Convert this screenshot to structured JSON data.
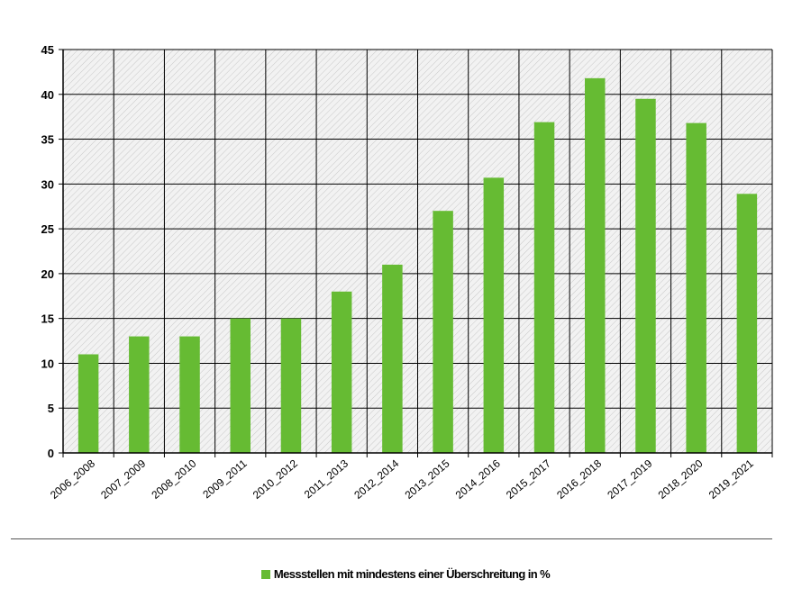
{
  "chart_data": {
    "type": "bar",
    "categories": [
      "2006_2008",
      "2007_2009",
      "2008_2010",
      "2009_2011",
      "2010_2012",
      "2011_2013",
      "2012_2014",
      "2013_2015",
      "2014_2016",
      "2015_2017",
      "2016_2018",
      "2017_2019",
      "2018_2020",
      "2019_2021"
    ],
    "series": [
      {
        "name": "Messstellen mit mindestens einer Überschreitung in %",
        "values": [
          11,
          13,
          13,
          15,
          15,
          18,
          21,
          27,
          30.7,
          36.9,
          41.8,
          39.5,
          36.8,
          28.9
        ],
        "color": "#66bb33"
      }
    ],
    "xlabel": "",
    "ylabel": "",
    "ylim": [
      0,
      45
    ],
    "yticks": [
      0,
      5,
      10,
      15,
      20,
      25,
      30,
      35,
      40,
      45
    ],
    "grid": true,
    "plot_background": "hatched-gray",
    "legend_position": "bottom"
  }
}
